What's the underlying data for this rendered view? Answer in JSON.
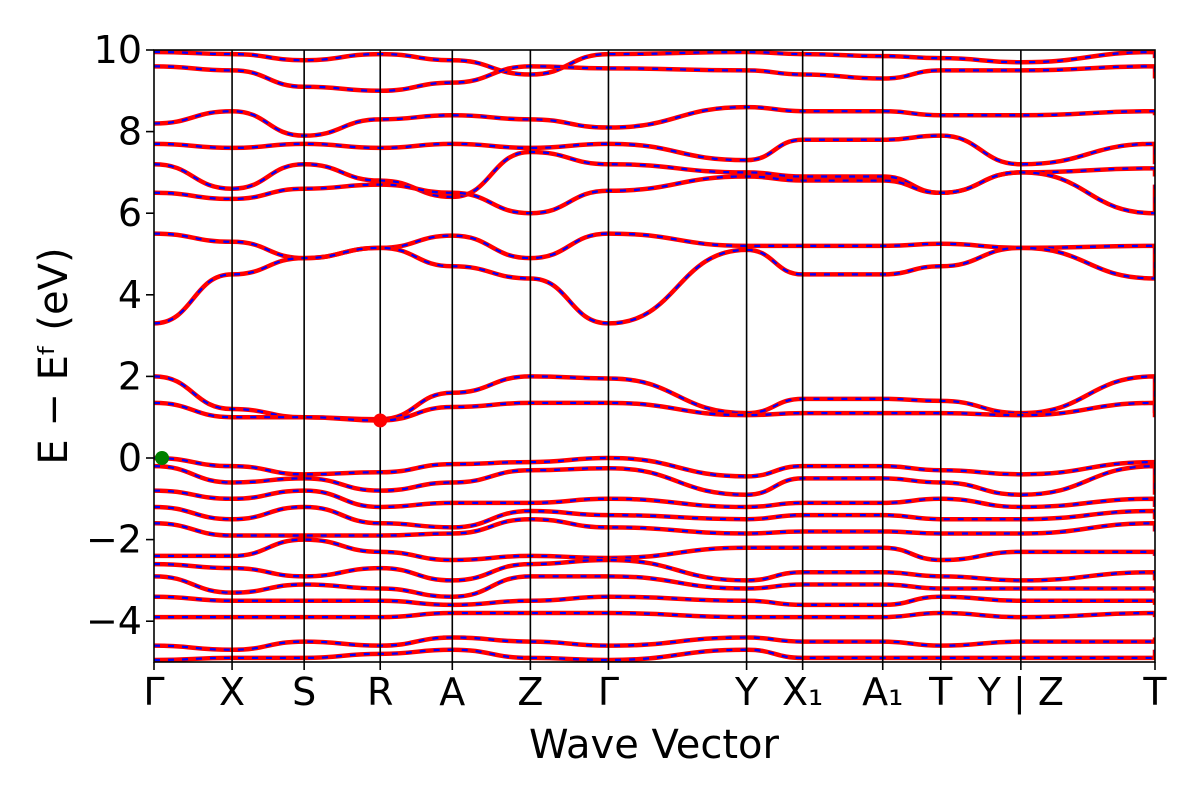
{
  "chart_data": {
    "type": "line",
    "xlabel": "Wave Vector",
    "ylabel": "E − Eᶠ (eV)",
    "ylim": [
      -5,
      10
    ],
    "yticks": [
      10,
      8,
      6,
      4,
      2,
      0,
      -2,
      -4
    ],
    "ytick_labels": [
      "10",
      "8",
      "6",
      "4",
      "2",
      "0",
      "−2",
      "−4"
    ],
    "kpath_labels": [
      "Γ",
      "X",
      "S",
      "R",
      "A",
      "Z",
      "Γ",
      "Y",
      "X₁",
      "A₁",
      "T",
      "Y | Z",
      "T"
    ],
    "kpath_positions": [
      0.0,
      0.78,
      1.5,
      2.26,
      2.98,
      3.76,
      4.54,
      5.92,
      6.48,
      7.28,
      7.86,
      8.66,
      10.0
    ],
    "band_colors": {
      "primary": "#ff0000",
      "secondary": "#0000ff"
    },
    "markers": [
      {
        "name": "VBM",
        "x": 0.08,
        "y": 0.0,
        "color": "#008000"
      },
      {
        "name": "CBM",
        "x": 2.26,
        "y": 0.92,
        "color": "#ff0000"
      }
    ],
    "band_knots": [
      [
        9.95,
        9.9,
        9.75,
        9.9,
        9.75,
        9.4,
        9.9,
        9.95,
        9.9,
        9.85,
        9.8,
        9.7,
        9.95,
        9.8
      ],
      [
        9.6,
        9.5,
        9.1,
        9.0,
        9.2,
        9.6,
        9.55,
        9.5,
        9.4,
        9.3,
        9.5,
        9.5,
        9.6,
        9.3
      ],
      [
        8.2,
        8.5,
        7.9,
        8.3,
        8.4,
        8.3,
        8.1,
        8.6,
        8.5,
        8.5,
        8.4,
        8.4,
        8.5,
        8.4
      ],
      [
        7.7,
        7.6,
        7.7,
        7.6,
        7.7,
        7.6,
        7.7,
        7.3,
        7.8,
        7.8,
        7.9,
        7.2,
        7.7,
        7.2
      ],
      [
        7.2,
        6.6,
        7.2,
        6.8,
        6.4,
        7.5,
        7.2,
        7.0,
        6.9,
        6.9,
        6.5,
        7.0,
        7.1,
        6.9
      ],
      [
        6.5,
        6.35,
        6.6,
        6.7,
        6.5,
        6.0,
        6.55,
        6.9,
        6.8,
        6.8,
        6.5,
        7.0,
        6.0,
        6.7
      ],
      [
        5.5,
        5.3,
        4.9,
        5.15,
        5.45,
        4.9,
        5.5,
        5.2,
        5.2,
        5.2,
        5.25,
        5.15,
        5.2,
        5.15
      ],
      [
        3.3,
        4.5,
        4.9,
        5.15,
        4.7,
        4.4,
        3.3,
        5.1,
        4.5,
        4.5,
        4.7,
        5.15,
        4.4,
        5.15
      ],
      [
        2.0,
        1.2,
        1.0,
        0.95,
        1.6,
        2.0,
        1.95,
        1.1,
        1.45,
        1.45,
        1.4,
        1.1,
        2.0,
        1.1
      ],
      [
        1.35,
        1.0,
        1.0,
        0.92,
        1.25,
        1.35,
        1.35,
        1.05,
        1.1,
        1.1,
        1.1,
        1.05,
        1.35,
        1.0
      ],
      [
        0.0,
        -0.2,
        -0.4,
        -0.35,
        -0.15,
        -0.1,
        0.0,
        -0.45,
        -0.2,
        -0.2,
        -0.3,
        -0.4,
        -0.1,
        -0.25
      ],
      [
        -0.2,
        -0.6,
        -0.5,
        -0.8,
        -0.6,
        -0.3,
        -0.25,
        -0.9,
        -0.5,
        -0.5,
        -0.6,
        -0.9,
        -0.2,
        -0.9
      ],
      [
        -0.8,
        -1.0,
        -0.8,
        -1.2,
        -1.1,
        -1.1,
        -1.0,
        -1.2,
        -1.1,
        -1.1,
        -1.0,
        -1.2,
        -1.0,
        -1.2
      ],
      [
        -1.2,
        -1.5,
        -1.2,
        -1.6,
        -1.7,
        -1.3,
        -1.4,
        -1.5,
        -1.4,
        -1.4,
        -1.5,
        -1.5,
        -1.3,
        -1.5
      ],
      [
        -1.6,
        -1.9,
        -1.9,
        -1.9,
        -1.85,
        -1.5,
        -1.7,
        -1.85,
        -1.8,
        -1.8,
        -1.85,
        -1.85,
        -1.6,
        -1.8
      ],
      [
        -2.4,
        -2.4,
        -2.0,
        -2.3,
        -2.5,
        -2.4,
        -2.45,
        -2.2,
        -2.2,
        -2.2,
        -2.5,
        -2.3,
        -2.3,
        -2.4
      ],
      [
        -2.6,
        -2.7,
        -2.9,
        -2.7,
        -3.0,
        -2.6,
        -2.5,
        -3.0,
        -2.8,
        -2.8,
        -2.9,
        -3.0,
        -2.8,
        -3.0
      ],
      [
        -2.9,
        -3.3,
        -3.1,
        -3.2,
        -3.4,
        -2.9,
        -2.9,
        -3.2,
        -3.1,
        -3.1,
        -3.2,
        -3.2,
        -3.2,
        -3.3
      ],
      [
        -3.4,
        -3.5,
        -3.5,
        -3.5,
        -3.6,
        -3.5,
        -3.4,
        -3.5,
        -3.6,
        -3.6,
        -3.4,
        -3.5,
        -3.5,
        -3.6
      ],
      [
        -3.9,
        -3.9,
        -3.9,
        -3.9,
        -3.8,
        -3.8,
        -3.8,
        -3.9,
        -3.9,
        -3.9,
        -3.8,
        -3.9,
        -3.8,
        -3.9
      ],
      [
        -4.6,
        -4.7,
        -4.5,
        -4.6,
        -4.4,
        -4.5,
        -4.6,
        -4.4,
        -4.5,
        -4.5,
        -4.6,
        -4.5,
        -4.5,
        -4.4
      ],
      [
        -4.95,
        -4.9,
        -4.9,
        -4.8,
        -4.7,
        -4.9,
        -4.95,
        -4.7,
        -4.9,
        -4.9,
        -4.9,
        -4.9,
        -4.9,
        -4.7
      ]
    ]
  }
}
